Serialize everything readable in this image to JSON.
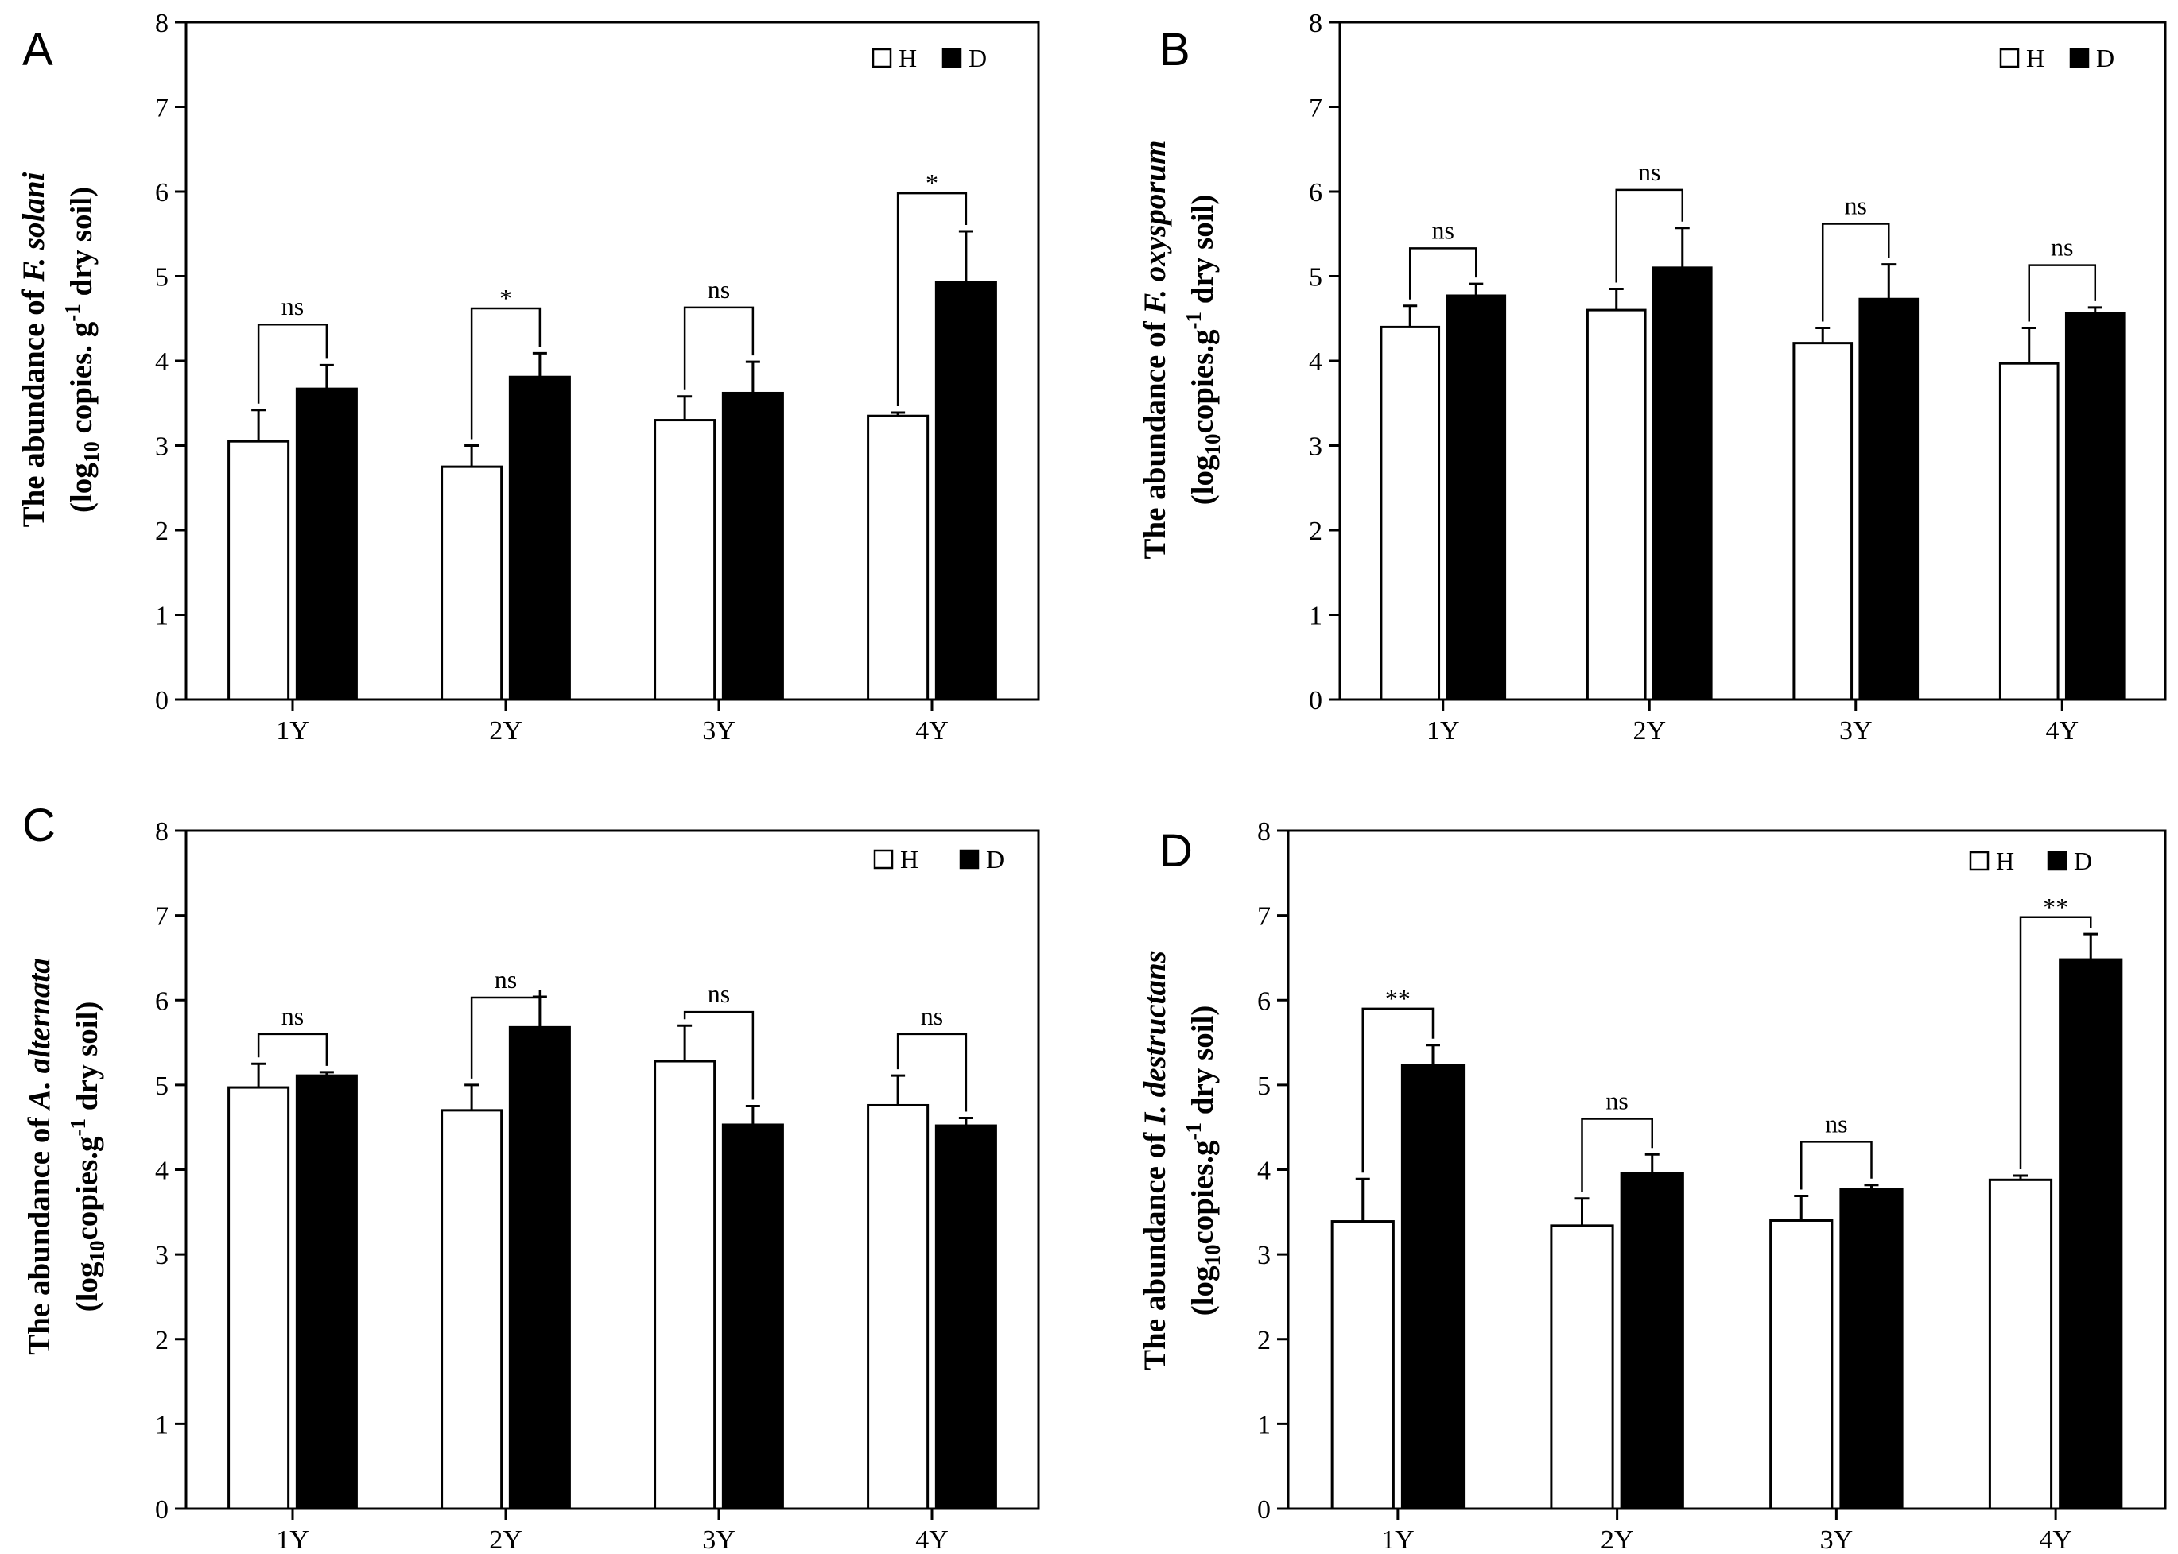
{
  "legend": {
    "h_label": "H",
    "d_label": "D"
  },
  "colors": {
    "h_fill": "#ffffff",
    "d_fill": "#000000",
    "stroke": "#000000"
  },
  "chart_data": [
    {
      "type": "bar",
      "panel": "A",
      "ylabel_line1_pre": "The abundance of ",
      "ylabel_line1_italic": "F. solani",
      "ylabel_line2": "(log10 copies. g-1 dry soil)",
      "ylabel_line2_parts": [
        "(log",
        "10",
        " copies. g",
        "-1",
        " dry soil)"
      ],
      "categories": [
        "1Y",
        "2Y",
        "3Y",
        "4Y"
      ],
      "series": [
        {
          "name": "H",
          "values": [
            3.05,
            2.75,
            3.3,
            3.35
          ],
          "errors": [
            0.37,
            0.25,
            0.28,
            0.04
          ]
        },
        {
          "name": "D",
          "values": [
            3.67,
            3.81,
            3.62,
            4.93
          ],
          "errors": [
            0.28,
            0.28,
            0.37,
            0.6
          ]
        }
      ],
      "significance": [
        "ns",
        "*",
        "ns",
        "*"
      ],
      "bracket_heights": [
        4.43,
        4.62,
        4.63,
        5.98
      ],
      "ylim": [
        0,
        8
      ],
      "yticks": [
        "0",
        "1",
        "2",
        "3",
        "4",
        "5",
        "6",
        "7",
        "8"
      ]
    },
    {
      "type": "bar",
      "panel": "B",
      "ylabel_line1_pre": "The abundance of ",
      "ylabel_line1_italic": "F. oxysporum",
      "ylabel_line2": "(log10copies.g-1 dry soil)",
      "ylabel_line2_parts": [
        "(log",
        "10",
        "copies.g",
        "-1",
        " dry soil)"
      ],
      "categories": [
        "1Y",
        "2Y",
        "3Y",
        "4Y"
      ],
      "series": [
        {
          "name": "H",
          "values": [
            4.4,
            4.6,
            4.21,
            3.97
          ],
          "errors": [
            0.25,
            0.25,
            0.18,
            0.42
          ]
        },
        {
          "name": "D",
          "values": [
            4.77,
            5.1,
            4.73,
            4.56
          ],
          "errors": [
            0.14,
            0.47,
            0.41,
            0.07
          ]
        }
      ],
      "significance": [
        "ns",
        "ns",
        "ns",
        "ns"
      ],
      "bracket_heights": [
        5.33,
        6.02,
        5.62,
        5.13
      ],
      "ylim": [
        0,
        8
      ],
      "yticks": [
        "0",
        "1",
        "2",
        "3",
        "4",
        "5",
        "6",
        "7",
        "8"
      ]
    },
    {
      "type": "bar",
      "panel": "C",
      "ylabel_line1_pre": "The abundance of ",
      "ylabel_line1_italic": "A. alternata",
      "ylabel_line2": "(log10copies.g-1 dry soil)",
      "ylabel_line2_parts": [
        "(log",
        "10",
        "copies.g",
        "-1",
        " dry soil)"
      ],
      "categories": [
        "1Y",
        "2Y",
        "3Y",
        "4Y"
      ],
      "series": [
        {
          "name": "H",
          "values": [
            4.97,
            4.7,
            5.28,
            4.76
          ],
          "errors": [
            0.28,
            0.3,
            0.42,
            0.35
          ]
        },
        {
          "name": "D",
          "values": [
            5.11,
            5.68,
            4.53,
            4.52
          ],
          "errors": [
            0.04,
            0.36,
            0.22,
            0.09
          ]
        }
      ],
      "significance": [
        "ns",
        "ns",
        "ns",
        "ns"
      ],
      "bracket_heights": [
        5.6,
        6.03,
        5.86,
        5.6
      ],
      "ylim": [
        0,
        8
      ],
      "yticks": [
        "0",
        "1",
        "2",
        "3",
        "4",
        "5",
        "6",
        "7",
        "8"
      ]
    },
    {
      "type": "bar",
      "panel": "D",
      "ylabel_line1_pre": "The abundance of ",
      "ylabel_line1_italic": "I. destructans",
      "ylabel_line2": "(log10copies.g-1 dry soil)",
      "ylabel_line2_parts": [
        "(log",
        "10",
        "copies.g",
        "-1",
        " dry soil)"
      ],
      "categories": [
        "1Y",
        "2Y",
        "3Y",
        "4Y"
      ],
      "series": [
        {
          "name": "H",
          "values": [
            3.39,
            3.34,
            3.4,
            3.88
          ],
          "errors": [
            0.5,
            0.32,
            0.29,
            0.05
          ]
        },
        {
          "name": "D",
          "values": [
            5.23,
            3.96,
            3.77,
            6.48
          ],
          "errors": [
            0.24,
            0.22,
            0.05,
            0.3
          ]
        }
      ],
      "significance": [
        "**",
        "ns",
        "ns",
        "**"
      ],
      "bracket_heights": [
        5.9,
        4.6,
        4.33,
        6.98
      ],
      "ylim": [
        0,
        8
      ],
      "yticks": [
        "0",
        "1",
        "2",
        "3",
        "4",
        "5",
        "6",
        "7",
        "8"
      ]
    }
  ]
}
